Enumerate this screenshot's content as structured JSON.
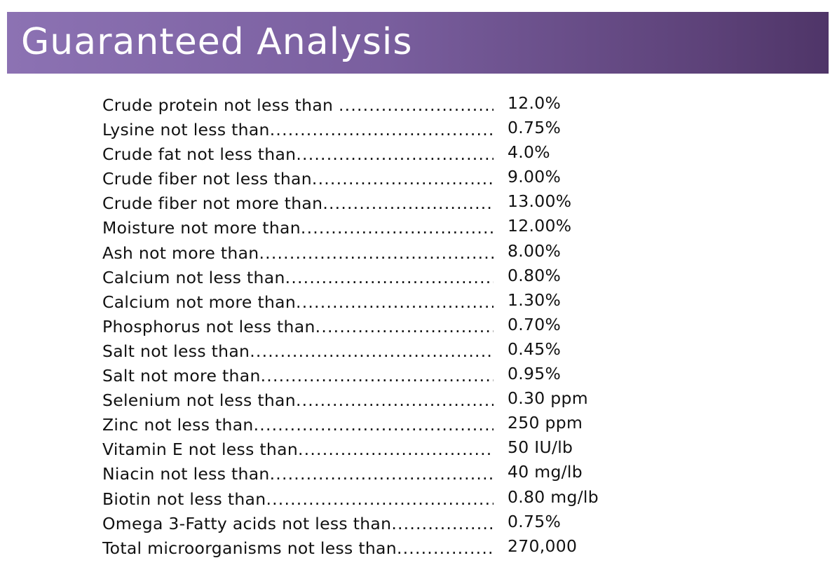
{
  "header": {
    "title": "Guaranteed Analysis",
    "background_color_start": "#8c72b3",
    "background_color_end": "#4f3568",
    "text_color": "#ffffff"
  },
  "analysis": {
    "leader": "..........................................................................",
    "rows": [
      {
        "label": "Crude protein not less than ",
        "value": "12.0%"
      },
      {
        "label": "Lysine not less than",
        "value": "0.75%"
      },
      {
        "label": "Crude fat not less than",
        "value": "4.0%"
      },
      {
        "label": "Crude fiber not less than",
        "value": "9.00%"
      },
      {
        "label": "Crude fiber not more than",
        "value": "13.00%"
      },
      {
        "label": "Moisture not more than",
        "value": "12.00%"
      },
      {
        "label": "Ash not more than",
        "value": "8.00%"
      },
      {
        "label": "Calcium not less than",
        "value": "0.80%"
      },
      {
        "label": "Calcium not more than",
        "value": "1.30%"
      },
      {
        "label": "Phosphorus not less than",
        "value": "0.70%"
      },
      {
        "label": "Salt not less than",
        "value": "0.45%"
      },
      {
        "label": "Salt not more than",
        "value": "0.95%"
      },
      {
        "label": "Selenium not less than",
        "value": "0.30 ppm"
      },
      {
        "label": "Zinc not less than",
        "value": "250 ppm"
      },
      {
        "label": "Vitamin E not less than",
        "value": "50 IU/lb"
      },
      {
        "label": "Niacin not less than",
        "value": "40 mg/lb"
      },
      {
        "label": "Biotin not less than",
        "value": "0.80 mg/lb"
      },
      {
        "label": "Omega 3-Fatty acids not less than",
        "value": "0.75%"
      },
      {
        "label": "Total microorganisms not less than",
        "value": "270,000"
      }
    ]
  }
}
